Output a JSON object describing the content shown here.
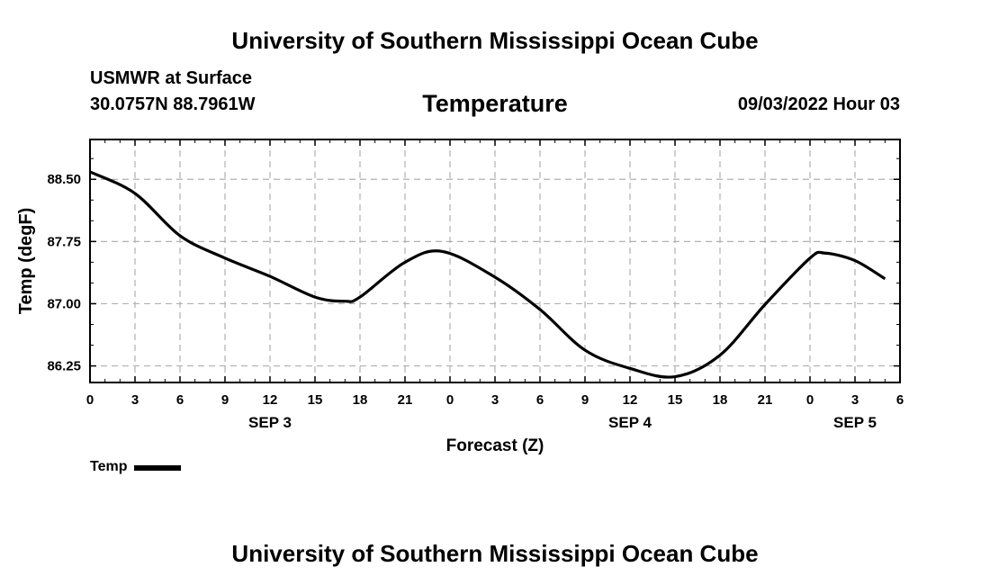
{
  "header": {
    "title_top": "University of Southern Mississippi Ocean Cube",
    "station": "USMWR at Surface",
    "coords": "30.0757N  88.7961W",
    "subtitle": "Temperature",
    "datetime": "09/03/2022 Hour 03",
    "title_bottom": "University of Southern Mississippi Ocean Cube"
  },
  "legend": {
    "label": "Temp"
  },
  "colors": {
    "line": "#000000",
    "grid": "#b0b0b0"
  },
  "chart_data": {
    "type": "line",
    "title": "Temperature",
    "xlabel": "Forecast (Z)",
    "ylabel": "Temp (degF)",
    "ylim": [
      86.05,
      88.98
    ],
    "y_ticks": [
      "86.25",
      "87.00",
      "87.75",
      "88.50"
    ],
    "x_tick_labels": [
      "0",
      "3",
      "6",
      "9",
      "12",
      "15",
      "18",
      "21",
      "0",
      "3",
      "6",
      "9",
      "12",
      "15",
      "18",
      "21",
      "0",
      "3",
      "6"
    ],
    "date_labels": [
      {
        "label": "SEP 3",
        "at_hour": 12
      },
      {
        "label": "SEP 4",
        "at_hour": 36
      },
      {
        "label": "SEP 5",
        "at_hour": 51
      }
    ],
    "grid": true,
    "legend_position": "bottom-left",
    "series": [
      {
        "name": "Temp",
        "x": [
          0,
          3,
          6,
          9,
          12,
          15,
          17,
          18,
          21,
          23.5,
          27,
          30,
          33,
          36,
          39,
          42,
          45,
          48,
          49,
          51,
          53
        ],
        "values": [
          88.59,
          88.33,
          87.82,
          87.55,
          87.33,
          87.08,
          87.03,
          87.08,
          87.5,
          87.63,
          87.32,
          86.93,
          86.44,
          86.22,
          86.12,
          86.38,
          86.99,
          87.55,
          87.61,
          87.52,
          87.3
        ]
      }
    ]
  }
}
